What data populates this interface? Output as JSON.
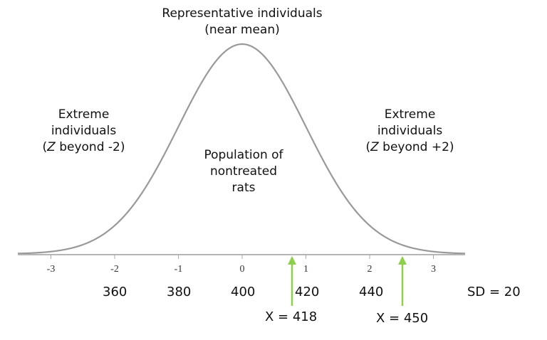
{
  "diagram": {
    "title_top": [
      "Representative individuals",
      "(near mean)"
    ],
    "left_label": {
      "line1": "Extreme",
      "line2": "individuals",
      "line3_prefix": "(",
      "line3_var": "Z",
      "line3_rest": " beyond -2)"
    },
    "right_label": {
      "line1": "Extreme",
      "line2": "individuals",
      "line3_prefix": "(",
      "line3_var": "Z",
      "line3_rest": " beyond +2)"
    },
    "center_label": [
      "Population of",
      "nontreated",
      "rats"
    ],
    "z_ticks": [
      "-3",
      "-2",
      "-1",
      "0",
      "1",
      "2",
      "3"
    ],
    "raw_values": [
      "360",
      "380",
      "400",
      "420",
      "440"
    ],
    "sd_label": "SD = 20",
    "markers": [
      {
        "label": "X = 418",
        "z": 0.9,
        "color": "#8dd04a"
      },
      {
        "label": "X = 450",
        "z": 2.5,
        "color": "#8dd04a"
      }
    ],
    "curve_color": "#999999",
    "axis_color": "#b0b0b0"
  }
}
